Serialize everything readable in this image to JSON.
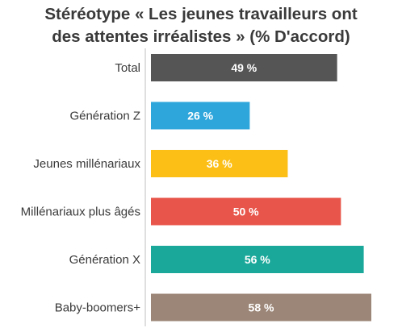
{
  "chart_data": {
    "type": "bar",
    "orientation": "horizontal",
    "title_lines": [
      "Stéréotype « Les jeunes travailleurs ont",
      "des attentes irréalistes » (% D'accord)"
    ],
    "categories": [
      "Total",
      "Génération Z",
      "Jeunes millénariaux",
      "Millénariaux plus âgés",
      "Génération X",
      "Baby-boomers+"
    ],
    "values": [
      49,
      26,
      36,
      50,
      56,
      58
    ],
    "value_labels": [
      "49 %",
      "26 %",
      "36 %",
      "50 %",
      "56 %",
      "58 %"
    ],
    "colors": [
      "#555555",
      "#2ea6dc",
      "#fbbf16",
      "#e8554a",
      "#1aa89a",
      "#9c8677"
    ],
    "xlim": [
      0,
      58
    ],
    "legend": "none",
    "grid": false
  }
}
